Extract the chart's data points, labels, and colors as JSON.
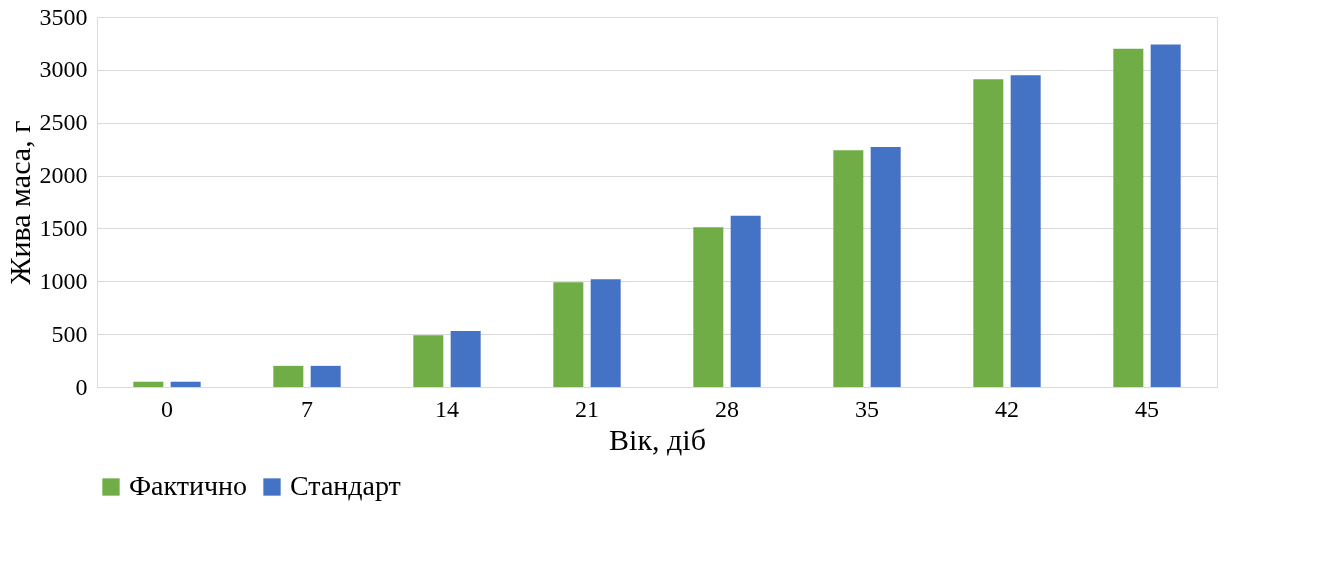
{
  "chart_data": {
    "type": "bar",
    "xlabel": "Вік, діб",
    "ylabel": "Жива маса, г",
    "categories": [
      "0",
      "7",
      "14",
      "21",
      "28",
      "35",
      "42",
      "45"
    ],
    "series": [
      {
        "name": "Фактично",
        "color": "#70ad47",
        "values": [
          50,
          200,
          490,
          990,
          1510,
          2240,
          2910,
          3200
        ]
      },
      {
        "name": "Стандарт",
        "color": "#4472c4",
        "values": [
          50,
          200,
          530,
          1020,
          1620,
          2270,
          2950,
          3240
        ]
      }
    ],
    "ylim": [
      0,
      3500
    ],
    "yticks": [
      0,
      500,
      1000,
      1500,
      2000,
      2500,
      3000,
      3500
    ],
    "grid": "y",
    "legend": "bottom"
  }
}
